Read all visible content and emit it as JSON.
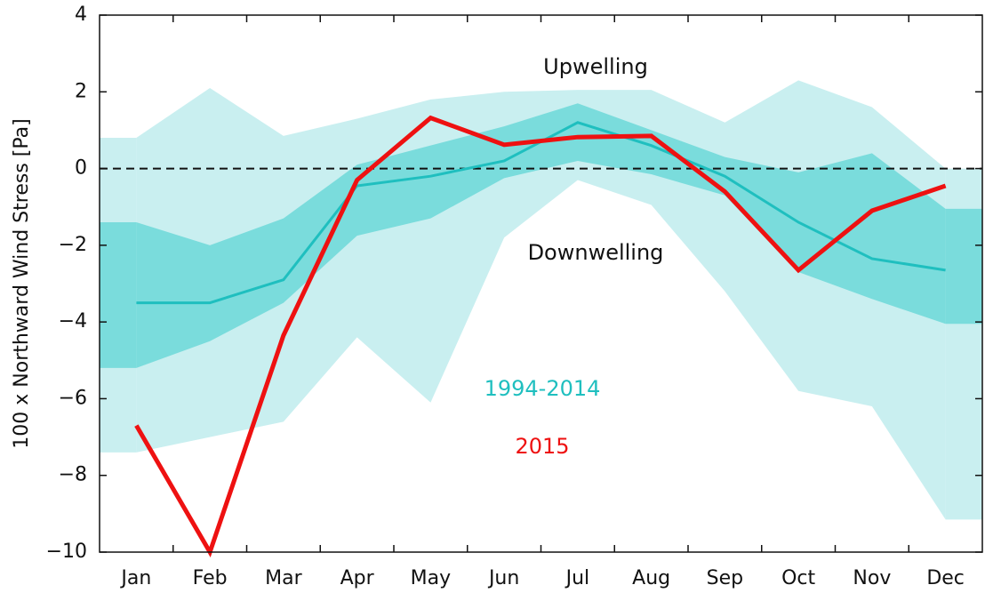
{
  "chart_data": {
    "type": "line",
    "y_label": "100 x Northward Wind Stress [Pa]",
    "categories": [
      "Jan",
      "Feb",
      "Mar",
      "Apr",
      "May",
      "Jun",
      "Jul",
      "Aug",
      "Sep",
      "Oct",
      "Nov",
      "Dec"
    ],
    "ranges": [
      {
        "color": "#c9eff0",
        "upper": [
          0.8,
          2.1,
          0.85,
          1.3,
          1.8,
          2.0,
          2.05,
          2.05,
          1.2,
          2.3,
          1.6,
          0.0
        ],
        "lower": [
          -7.4,
          -7.0,
          -6.6,
          -4.4,
          -6.1,
          -1.8,
          -0.3,
          -0.95,
          -3.2,
          -5.8,
          -6.2,
          -9.15
        ]
      },
      {
        "color": "#7adcdc",
        "upper": [
          -1.4,
          -2.0,
          -1.3,
          0.1,
          0.6,
          1.1,
          1.7,
          1.0,
          0.3,
          -0.1,
          0.4,
          -1.05
        ],
        "lower": [
          -5.2,
          -4.5,
          -3.5,
          -1.75,
          -1.3,
          -0.25,
          0.2,
          -0.15,
          -0.7,
          -2.7,
          -3.4,
          -4.05
        ]
      }
    ],
    "series": [
      {
        "name": "1994-2014",
        "color": "#1fbfbf",
        "values": [
          -3.5,
          -3.5,
          -2.9,
          -0.45,
          -0.2,
          0.2,
          1.2,
          0.6,
          -0.2,
          -1.4,
          -2.35,
          -2.65
        ]
      },
      {
        "name": "2015",
        "color": "#ee1111",
        "values": [
          -6.7,
          -10,
          -4.35,
          -0.3,
          1.32,
          0.62,
          0.82,
          0.85,
          -0.6,
          -2.65,
          -1.1,
          -0.45
        ]
      }
    ],
    "annotations": [
      "Upwelling",
      "Downwelling"
    ],
    "reference_line": 0,
    "ylim": [
      -10,
      4
    ],
    "yticks": [
      {
        "value": -10,
        "label": "−10"
      },
      {
        "value": -8,
        "label": "−8"
      },
      {
        "value": -6,
        "label": "−6"
      },
      {
        "value": -4,
        "label": "−4"
      },
      {
        "value": -2,
        "label": "−2"
      },
      0,
      2,
      4
    ]
  }
}
